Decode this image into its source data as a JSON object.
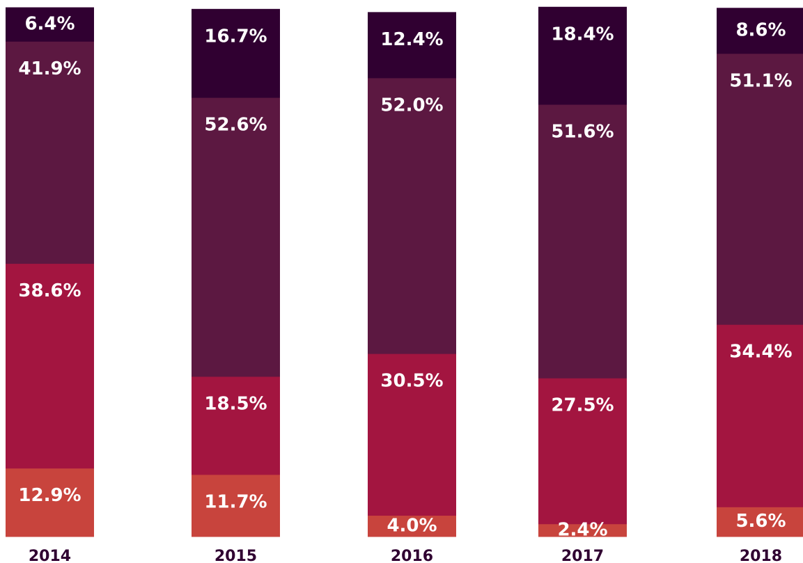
{
  "chart_data": {
    "type": "bar",
    "stacked": true,
    "normalized": true,
    "categories": [
      "2014",
      "2015",
      "2016",
      "2017",
      "2018"
    ],
    "series": [
      {
        "color": "#c8443d",
        "values": [
          12.9,
          11.7,
          4.0,
          2.4,
          5.6
        ],
        "labels": [
          "12.9%",
          "11.7%",
          "4.0%",
          "2.4%",
          "5.6%"
        ]
      },
      {
        "color": "#a31540",
        "values": [
          38.6,
          18.5,
          30.5,
          27.5,
          34.4
        ],
        "labels": [
          "38.6%",
          "18.5%",
          "30.5%",
          "27.5%",
          "34.4%"
        ]
      },
      {
        "color": "#5c1841",
        "values": [
          41.9,
          52.6,
          52.0,
          51.6,
          51.1
        ],
        "labels": [
          "41.9%",
          "52.6%",
          "52.0%",
          "51.6%",
          "51.1%"
        ]
      },
      {
        "color": "#300031",
        "values": [
          6.4,
          16.7,
          12.4,
          18.4,
          8.6
        ],
        "labels": [
          "6.4%",
          "16.7%",
          "12.4%",
          "18.4%",
          "8.6%"
        ]
      }
    ],
    "category_label_color": "#300031",
    "value_label_color": "#ffffff",
    "legend": false,
    "grid": false,
    "title": "",
    "xlabel": "",
    "ylabel": ""
  }
}
